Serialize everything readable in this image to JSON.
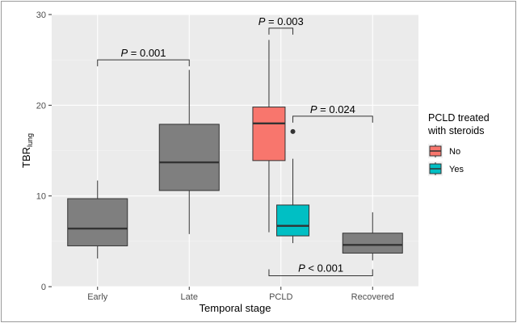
{
  "chart_data": {
    "type": "boxplot",
    "xlabel": "Temporal stage",
    "ylabel_main": "TBR",
    "ylabel_sub": "lung",
    "ylim": [
      0,
      30
    ],
    "yticks": [
      0,
      10,
      20,
      30
    ],
    "categories": [
      "Early",
      "Late",
      "PCLD",
      "Recovered"
    ],
    "grid": true,
    "legend": {
      "title_line1": "PCLD treated",
      "title_line2": "with steroids",
      "placement": "right",
      "entries": [
        {
          "label": "No",
          "color": "#f8766d"
        },
        {
          "label": "Yes",
          "color": "#00bfc4"
        }
      ]
    },
    "boxes": [
      {
        "category": "Early",
        "group": "",
        "min": 3.1,
        "q1": 4.5,
        "median": 6.4,
        "q3": 9.7,
        "max": 11.7,
        "outliers": [],
        "color": "#7f7f7f"
      },
      {
        "category": "Late",
        "group": "",
        "min": 5.8,
        "q1": 10.6,
        "median": 13.7,
        "q3": 17.9,
        "max": 23.9,
        "outliers": [],
        "color": "#7f7f7f"
      },
      {
        "category": "PCLD",
        "group": "No",
        "min": 6.0,
        "q1": 13.9,
        "median": 18.0,
        "q3": 19.8,
        "max": 27.2,
        "outliers": [],
        "color": "#f8766d"
      },
      {
        "category": "PCLD",
        "group": "Yes",
        "min": 4.8,
        "q1": 5.6,
        "median": 6.7,
        "q3": 9.0,
        "max": 14.1,
        "outliers": [
          17.1
        ],
        "color": "#00bfc4"
      },
      {
        "category": "Recovered",
        "group": "",
        "min": 2.9,
        "q1": 3.7,
        "median": 4.6,
        "q3": 5.9,
        "max": 8.2,
        "outliers": [],
        "color": "#7f7f7f"
      }
    ],
    "annotations": [
      {
        "text_italic": "P",
        "text_rest": " = 0.001",
        "from": "Early",
        "to": "Late",
        "y": 25.0,
        "direction": "down"
      },
      {
        "text_italic": "P",
        "text_rest": " = 0.003",
        "from": "PCLD-No",
        "to": "PCLD-Yes",
        "y": 28.5,
        "direction": "down"
      },
      {
        "text_italic": "P",
        "text_rest": " = 0.024",
        "from": "PCLD-Yes",
        "to": "Recovered",
        "y": 18.8,
        "direction": "down"
      },
      {
        "text_italic": "P",
        "text_rest": " < 0.001",
        "from": "PCLD-No",
        "to": "Recovered",
        "y": 1.2,
        "direction": "up"
      }
    ]
  }
}
